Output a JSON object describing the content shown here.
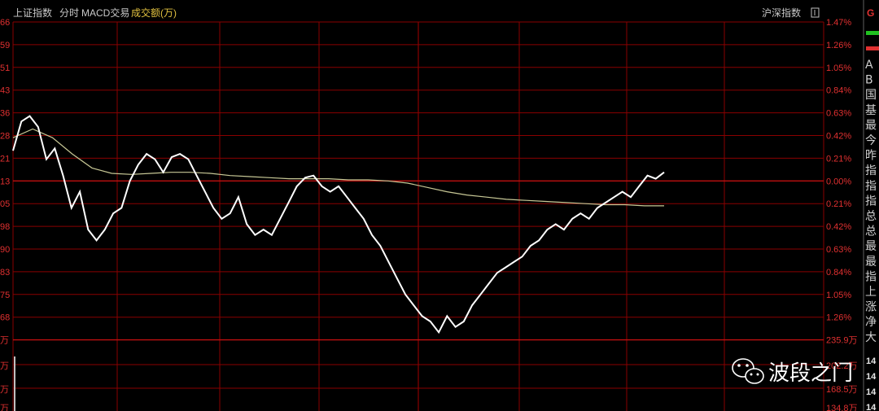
{
  "header": {
    "index_name": "上证指数",
    "tab_intraday": "分时",
    "tab_macd": "MACD交易",
    "tab_volume": "成交额(万)",
    "right_label": "沪深指数"
  },
  "colors": {
    "grid": "#8a0000",
    "tick": "#e03030",
    "price_line": "#ffffff",
    "avg_line": "#c8c896",
    "volume_tab": "#e0c040"
  },
  "icons": {
    "window_box": "square-icon",
    "wechat": "wechat-icon"
  },
  "watermark": {
    "text": "波段之门"
  },
  "left_ticks": [
    "66",
    "59",
    "51",
    "43",
    "36",
    "28",
    "21",
    "13",
    "05",
    "98",
    "90",
    "83",
    "75",
    "68",
    "万"
  ],
  "right_ticks": [
    "1.47%",
    "1.26%",
    "1.05%",
    "0.84%",
    "0.63%",
    "0.42%",
    "0.21%",
    "0.00%",
    "0.21%",
    "0.42%",
    "0.63%",
    "0.84%",
    "1.05%",
    "1.26%",
    "235.9万"
  ],
  "volume_left_ticks": [
    "万",
    "万",
    "万"
  ],
  "volume_right_ticks": [
    "202.2万",
    "168.5万",
    "134.8万"
  ],
  "sidebar": {
    "top_letter": "G",
    "labels": [
      "A",
      "B",
      "国",
      "基",
      "最",
      "今",
      "昨",
      "指",
      "指",
      "指",
      "总",
      "总",
      "最",
      "最",
      "指",
      "上",
      "涨",
      "净",
      "大"
    ],
    "numbers": [
      "14",
      "14",
      "14",
      "14"
    ]
  },
  "chart_data": {
    "type": "line",
    "ylabel_left": "",
    "ylabel_right": "",
    "ylim_pct": [
      -1.47,
      1.47
    ],
    "series": [
      {
        "role": "price",
        "values_pct": [
          0.28,
          0.55,
          0.6,
          0.5,
          0.2,
          0.3,
          0.05,
          -0.25,
          -0.1,
          -0.45,
          -0.55,
          -0.45,
          -0.3,
          -0.25,
          0.0,
          0.15,
          0.25,
          0.2,
          0.08,
          0.22,
          0.25,
          0.2,
          0.05,
          -0.1,
          -0.25,
          -0.35,
          -0.3,
          -0.15,
          -0.4,
          -0.5,
          -0.45,
          -0.5,
          -0.35,
          -0.2,
          -0.05,
          0.03,
          0.05,
          -0.05,
          -0.1,
          -0.05,
          -0.15,
          -0.25,
          -0.35,
          -0.5,
          -0.6,
          -0.75,
          -0.9,
          -1.05,
          -1.15,
          -1.25,
          -1.3,
          -1.4,
          -1.25,
          -1.35,
          -1.3,
          -1.15,
          -1.05,
          -0.95,
          -0.85,
          -0.8,
          -0.75,
          -0.7,
          -0.6,
          -0.55,
          -0.45,
          -0.4,
          -0.45,
          -0.35,
          -0.3,
          -0.35,
          -0.25,
          -0.2,
          -0.15,
          -0.1,
          -0.15,
          -0.05,
          0.05,
          0.02,
          0.08
        ]
      },
      {
        "role": "average",
        "values_pct": [
          0.4,
          0.48,
          0.4,
          0.25,
          0.12,
          0.07,
          0.06,
          0.07,
          0.08,
          0.08,
          0.07,
          0.05,
          0.04,
          0.03,
          0.02,
          0.02,
          0.02,
          0.01,
          0.01,
          0.0,
          -0.02,
          -0.06,
          -0.1,
          -0.13,
          -0.15,
          -0.17,
          -0.18,
          -0.19,
          -0.2,
          -0.21,
          -0.22,
          -0.22,
          -0.23,
          -0.23
        ]
      }
    ]
  }
}
